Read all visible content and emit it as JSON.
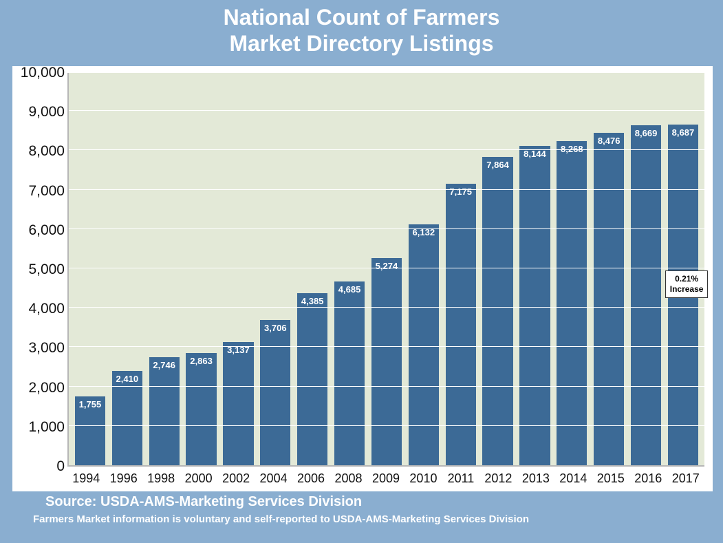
{
  "title_line1": "National Count of Farmers",
  "title_line2": "Market Directory Listings",
  "source": "Source:  USDA-AMS-Marketing Services Division",
  "footnote": "Farmers Market information is voluntary and self-reported to USDA-AMS-Marketing Services Division",
  "chart": {
    "type": "bar",
    "background_color_outer": "#8aaed0",
    "background_color_plot": "#e3e9d7",
    "grid_color": "#ffffff",
    "axis_color": "#b7b7b7",
    "bar_color": "#3c6a96",
    "bar_label_color": "#ffffff",
    "title_color": "#ffffff",
    "title_fontsize": 32,
    "axis_fontsize": 21,
    "xlabel_fontsize": 18,
    "barlabel_fontsize": 13,
    "ylim_min": 0,
    "ylim_max": 10000,
    "ytick_step": 1000,
    "yticks": [
      "0",
      "1,000",
      "2,000",
      "3,000",
      "4,000",
      "5,000",
      "6,000",
      "7,000",
      "8,000",
      "9,000",
      "10,000"
    ],
    "categories": [
      "1994",
      "1996",
      "1998",
      "2000",
      "2002",
      "2004",
      "2006",
      "2008",
      "2009",
      "2010",
      "2011",
      "2012",
      "2013",
      "2014",
      "2015",
      "2016",
      "2017"
    ],
    "values": [
      1755,
      2410,
      2746,
      2863,
      3137,
      3706,
      4385,
      4685,
      5274,
      6132,
      7175,
      7864,
      8144,
      8268,
      8476,
      8669,
      8687
    ],
    "value_labels": [
      "1,755",
      "2,410",
      "2,746",
      "2,863",
      "3,137",
      "3,706",
      "4,385",
      "4,685",
      "5,274",
      "6,132",
      "7,175",
      "7,864",
      "8,144",
      "8,268",
      "8,476",
      "8,669",
      "8,687"
    ],
    "bar_width_pct": 82,
    "callout": {
      "text": "0.21%\nIncrease",
      "bar_index": 16,
      "y_value_pos": 4700,
      "bg": "#ffffff",
      "border": "#333333",
      "fontsize": 12
    }
  }
}
